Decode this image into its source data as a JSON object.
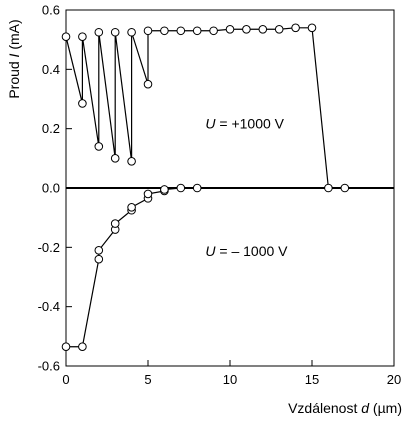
{
  "chart_data": {
    "type": "line",
    "xlabel": {
      "pre": "Vzdálenost ",
      "var": "d",
      "post": " (µm)"
    },
    "ylabel": {
      "pre": "Proud ",
      "var": "I",
      "post": " (mA)"
    },
    "xlim": [
      0,
      20
    ],
    "ylim": [
      -0.6,
      0.6
    ],
    "x_ticks": [
      0,
      5,
      10,
      15,
      20
    ],
    "x_tick_labels": [
      "0",
      "5",
      "10",
      "15",
      "20"
    ],
    "y_ticks": [
      -0.6,
      -0.4,
      -0.2,
      0.0,
      0.2,
      0.4,
      0.6
    ],
    "y_tick_labels": [
      "-0.6",
      "-0.4",
      "-0.2",
      "0.0",
      "0.2",
      "0.4",
      "0.6"
    ],
    "zero_line": true,
    "grid": false,
    "annotations": [
      {
        "var": "U",
        "text": " = +1000 V",
        "x": 8.5,
        "y": 0.2
      },
      {
        "var": "U",
        "text": " = – 1000 V",
        "x": 8.5,
        "y": -0.23
      }
    ],
    "series": [
      {
        "x": [
          0,
          1,
          1,
          2,
          2,
          3,
          3,
          4,
          4,
          5,
          5,
          6,
          7,
          8,
          9,
          10,
          11,
          12,
          13,
          14,
          15,
          16,
          17
        ],
        "y": [
          0.51,
          0.285,
          0.51,
          0.14,
          0.525,
          0.1,
          0.525,
          0.09,
          0.525,
          0.35,
          0.53,
          0.53,
          0.53,
          0.53,
          0.53,
          0.535,
          0.535,
          0.535,
          0.535,
          0.54,
          0.54,
          0.0,
          0.0
        ]
      },
      {
        "x": [
          0,
          1,
          2,
          2,
          3,
          3,
          4,
          4,
          5,
          5,
          6,
          6,
          7,
          8
        ],
        "y": [
          -0.535,
          -0.535,
          -0.24,
          -0.21,
          -0.14,
          -0.12,
          -0.075,
          -0.065,
          -0.035,
          -0.02,
          -0.01,
          -0.005,
          0.0,
          0.0
        ]
      }
    ]
  }
}
